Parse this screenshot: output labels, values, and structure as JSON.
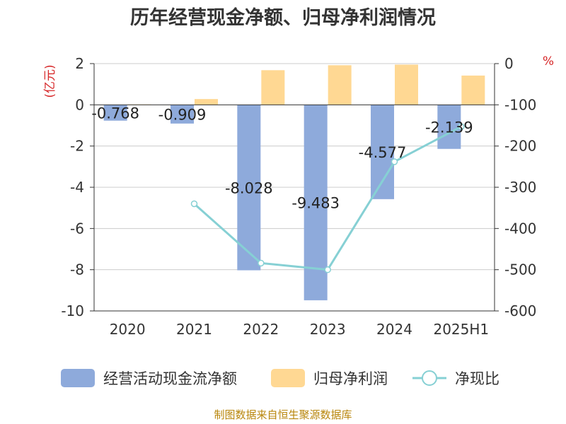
{
  "chart_data": {
    "type": "bar",
    "title": "历年经营现金净额、归母净利润情况",
    "categories": [
      "2020",
      "2021",
      "2022",
      "2023",
      "2024",
      "2025H1"
    ],
    "series": [
      {
        "name": "经营活动现金流净额",
        "type": "bar",
        "axis": "left",
        "values": [
          -0.768,
          -0.909,
          -8.028,
          -9.483,
          -4.577,
          -2.139
        ],
        "labels": [
          "-0.768",
          "-0.909",
          "-8.028",
          "-9.483",
          "-4.577",
          "-2.139"
        ],
        "color": "#8eaadb"
      },
      {
        "name": "归母净利润",
        "type": "bar",
        "axis": "left",
        "values": [
          0.02,
          0.28,
          1.68,
          1.92,
          1.95,
          1.42
        ],
        "color": "#ffd893"
      },
      {
        "name": "净现比",
        "type": "line",
        "axis": "right",
        "values": [
          null,
          -340,
          -484,
          -500,
          -238,
          -153
        ],
        "color": "#86d0d4"
      }
    ],
    "y_left": {
      "unit": "(亿元)",
      "ylim": [
        -10,
        2
      ],
      "ticks": [
        2,
        0,
        -2,
        -4,
        -6,
        -8,
        -10
      ]
    },
    "y_right": {
      "unit": "%",
      "ylim": [
        -600,
        0
      ],
      "ticks": [
        0,
        -100,
        -200,
        -300,
        -400,
        -500,
        -600
      ]
    },
    "grid": true,
    "legend_position": "bottom"
  },
  "source": "制图数据来自恒生聚源数据库"
}
